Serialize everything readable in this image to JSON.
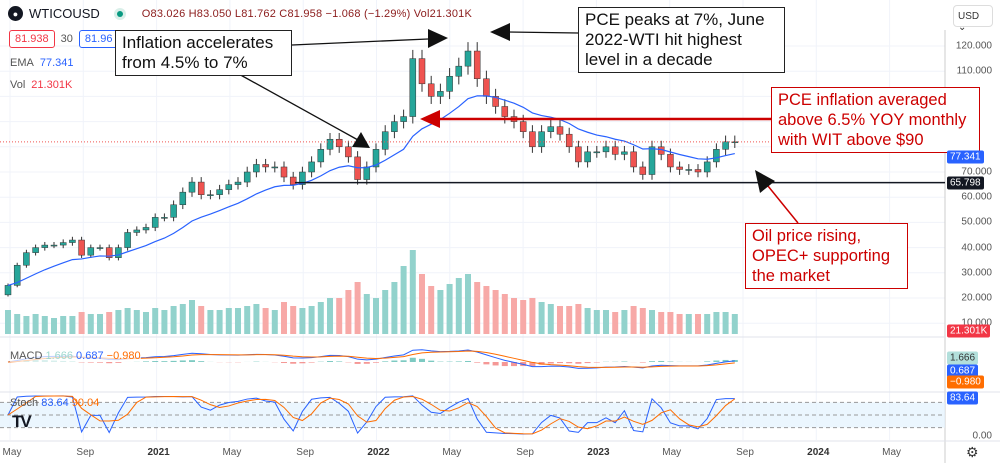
{
  "header": {
    "symbol": "WTICOUSD",
    "ohlc": "O83.026 H83.050 L81.762 C81.958 −1.068 (−1.29%) Vol21.301K",
    "sell_price": "81.938",
    "spread": "30",
    "buy_price": "81.96",
    "ema_label": "EMA",
    "ema_value": "77.341",
    "vol_label": "Vol",
    "vol_value": "21.301K",
    "currency": "USD"
  },
  "indicators": {
    "macd_label": "MACD",
    "macd_hist": "1.666",
    "macd_line": "0.687",
    "macd_signal": "−0.980",
    "stoch_label": "Stoch",
    "stoch_k": "83.64",
    "stoch_d": "90.04"
  },
  "annotations": {
    "a1": "Inflation accelerates from 4.5% to 7%",
    "a2": "PCE peaks at 7%, June 2022-WTI hit highest level in a decade",
    "a3": "PCE inflation averaged above 6.5%  YOY  monthly with WIT above $90",
    "a4": "Oil price rising, OPEC+ supporting the market"
  },
  "price_axis": {
    "labels": [
      "120.000",
      "110.000",
      "70.000",
      "60.000",
      "50.000",
      "40.000",
      "30.000",
      "20.000",
      "10.000"
    ],
    "ema_tag": "77.341",
    "support_tag": "65.798",
    "vol_tag": "21.301K",
    "macd_tags": [
      "1.666",
      "0.687",
      "−0.980"
    ],
    "stoch_tag": "83.64",
    "stoch_zero": "0.00"
  },
  "time_axis": [
    "May",
    "Sep",
    "2021",
    "May",
    "Sep",
    "2022",
    "May",
    "Sep",
    "2023",
    "May",
    "Sep",
    "2024",
    "May"
  ],
  "colors": {
    "up": "#26a69a",
    "down": "#ef5350",
    "ema": "#2962ff",
    "annotation_red": "#c00000"
  },
  "chart_data": {
    "type": "candlestick",
    "title": "WTICOUSD",
    "period": "bi-weekly (approx.)",
    "start": "2020-05",
    "support_level": 65.798,
    "highlight_level": 100,
    "current_price": 81.938,
    "ylim": [
      5,
      125
    ],
    "close": [
      25,
      33,
      38,
      40,
      41,
      41,
      42,
      43,
      37,
      40,
      40,
      36,
      40,
      46,
      47,
      48,
      52,
      52,
      57,
      62,
      66,
      61,
      61,
      63,
      65,
      66,
      70,
      73,
      72,
      72,
      68,
      65,
      70,
      74,
      79,
      83,
      80,
      76,
      67,
      72,
      79,
      86,
      90,
      92,
      115,
      105,
      100,
      102,
      108,
      112,
      118,
      107,
      100,
      96,
      92,
      90,
      86,
      80,
      86,
      88,
      85,
      80,
      74,
      78,
      78,
      80,
      77,
      78,
      72,
      69,
      80,
      77,
      72,
      71,
      71,
      70,
      74,
      79,
      82,
      82
    ],
    "volume": [
      12,
      10,
      9,
      10,
      9,
      8,
      9,
      9,
      11,
      10,
      10,
      11,
      12,
      13,
      12,
      11,
      13,
      12,
      14,
      15,
      17,
      14,
      12,
      12,
      13,
      13,
      14,
      15,
      13,
      12,
      16,
      14,
      13,
      14,
      16,
      18,
      18,
      22,
      26,
      20,
      18,
      22,
      26,
      34,
      42,
      30,
      24,
      22,
      25,
      28,
      30,
      26,
      24,
      22,
      20,
      18,
      17,
      18,
      16,
      15,
      14,
      14,
      15,
      13,
      12,
      12,
      11,
      12,
      14,
      13,
      12,
      11,
      11,
      10,
      10,
      10,
      10,
      11,
      11,
      10
    ]
  }
}
